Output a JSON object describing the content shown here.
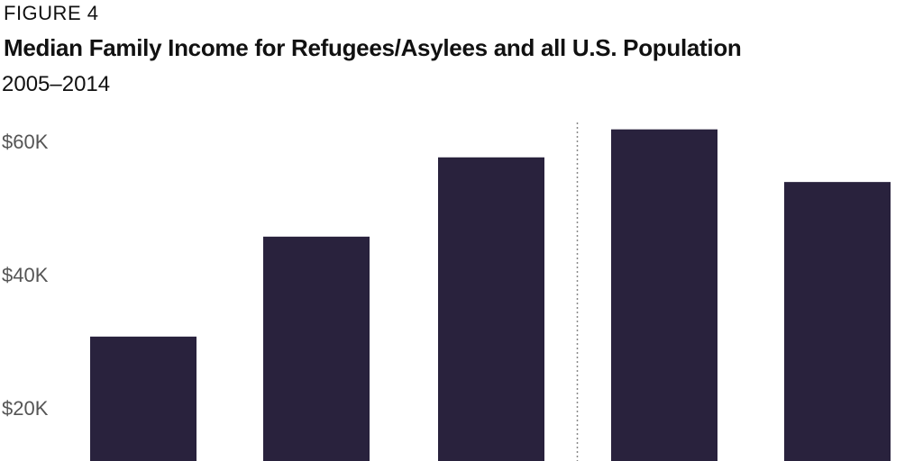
{
  "header": {
    "figure_label": "FIGURE 4",
    "title": "Median Family Income for Refugees/Asylees and all U.S. Population",
    "subtitle": "2005–2014"
  },
  "colors": {
    "bar": "#29223d",
    "divider": "#888888",
    "tick_text": "#555555"
  },
  "chart_data": {
    "type": "bar",
    "title": "Median Family Income for Refugees/Asylees and all U.S. Population",
    "subtitle": "2005–2014",
    "categories": [
      "",
      "",
      "",
      "",
      ""
    ],
    "values": [
      30700,
      45700,
      57600,
      61800,
      53900
    ],
    "y_ticks": [
      20000,
      40000,
      60000
    ],
    "y_tick_labels": [
      "$20K",
      "$40K",
      "$60K"
    ],
    "ylim": [
      10000,
      64000
    ],
    "grid": false,
    "divider_after_index": 2,
    "xlabel": "",
    "ylabel": ""
  }
}
